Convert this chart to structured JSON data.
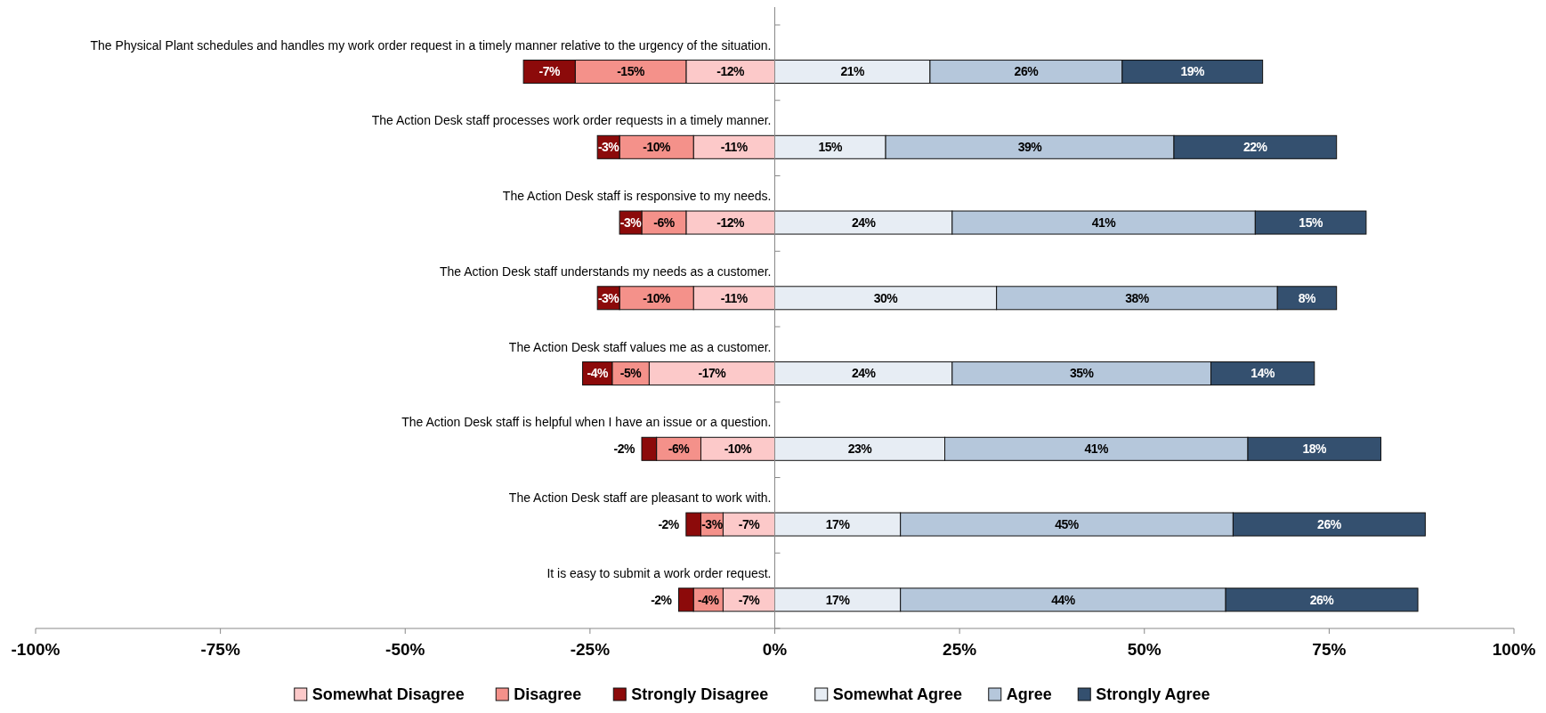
{
  "chart_data": {
    "type": "bar",
    "orientation": "horizontal",
    "stacked": true,
    "legend": "bottom",
    "grid": false,
    "categories": [
      "The Physical Plant schedules and handles my work order request in a timely manner relative to the urgency of the situation.",
      "The Action Desk staff processes work order requests in a timely manner.",
      "The Action Desk staff is responsive to my needs.",
      "The Action Desk staff understands my needs as a customer.",
      "The Action Desk staff values me as a customer.",
      "The Action Desk staff is helpful when I have an issue or a question.",
      "The Action Desk staff are pleasant to work with.",
      "It is easy to submit a work order request."
    ],
    "xlim": [
      -100,
      100
    ],
    "xticks": [
      {
        "value": -100,
        "label": "-100%"
      },
      {
        "value": -75,
        "label": "-75%"
      },
      {
        "value": -50,
        "label": "-50%"
      },
      {
        "value": -25,
        "label": "-25%"
      },
      {
        "value": 0,
        "label": "0%"
      },
      {
        "value": 25,
        "label": "25%"
      },
      {
        "value": 50,
        "label": "50%"
      },
      {
        "value": 75,
        "label": "75%"
      },
      {
        "value": 100,
        "label": "100%"
      }
    ],
    "series": [
      {
        "name": "Somewhat Disagree",
        "color": "#fcc9c9",
        "values": [
          -12,
          -11,
          -12,
          -11,
          -17,
          -10,
          -7,
          -7
        ],
        "value_labels": [
          "-12%",
          "-11%",
          "-12%",
          "-11%",
          "-17%",
          "-10%",
          "-7%",
          "-7%"
        ]
      },
      {
        "name": "Disagree",
        "color": "#f4918a",
        "values": [
          -15,
          -10,
          -6,
          -10,
          -5,
          -6,
          -3,
          -4
        ],
        "value_labels": [
          "-15%",
          "-10%",
          "-6%",
          "-10%",
          "-5%",
          "-6%",
          "-3%",
          "-4%"
        ]
      },
      {
        "name": "Strongly Disagree",
        "color": "#8c0a0a",
        "values": [
          -7,
          -3,
          -3,
          -3,
          -4,
          -2,
          -2,
          -2
        ],
        "value_labels": [
          "-7%",
          "-3%",
          "-3%",
          "-3%",
          "-4%",
          "-2%",
          "-2%",
          "-2%"
        ]
      },
      {
        "name": "Somewhat Agree",
        "color": "#e7edf4",
        "values": [
          21,
          15,
          24,
          30,
          24,
          23,
          17,
          17
        ],
        "value_labels": [
          "21%",
          "15%",
          "24%",
          "30%",
          "24%",
          "23%",
          "17%",
          "17%"
        ]
      },
      {
        "name": "Agree",
        "color": "#b5c7db",
        "values": [
          26,
          39,
          41,
          38,
          35,
          41,
          45,
          44
        ],
        "value_labels": [
          "26%",
          "39%",
          "41%",
          "38%",
          "35%",
          "41%",
          "45%",
          "44%"
        ]
      },
      {
        "name": "Strongly Agree",
        "color": "#34506f",
        "values": [
          19,
          22,
          15,
          8,
          14,
          18,
          26,
          26
        ],
        "value_labels": [
          "19%",
          "22%",
          "15%",
          "8%",
          "14%",
          "18%",
          "26%",
          "26%"
        ]
      }
    ]
  }
}
